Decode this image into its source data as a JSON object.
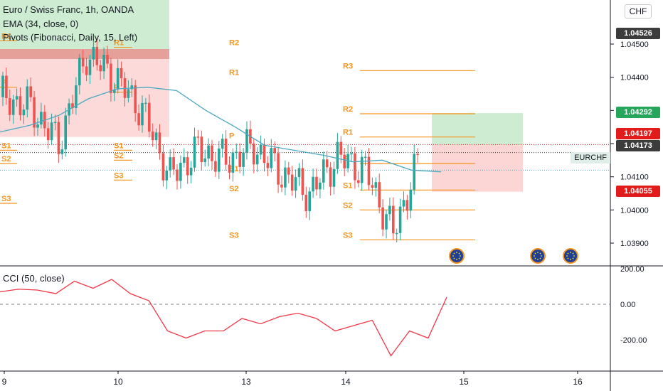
{
  "legend": {
    "title": "Euro / Swiss Franc, 1h, OANDA",
    "ema": "EMA (34, close, 0)",
    "pivots": "Pivots (Fibonacci, Daily, 15, Left)",
    "cci": "CCI (50, close)"
  },
  "currency_button": "CHF",
  "symbol_label": "EURCHF",
  "price_badges": [
    {
      "value": "1.04526",
      "color": "#3c3c3c",
      "text_color": "#ffffff"
    },
    {
      "value": "1.04292",
      "color": "#26a65b",
      "text_color": "#ffffff"
    },
    {
      "value": "1.04197",
      "color": "#e21b1b",
      "text_color": "#ffffff"
    },
    {
      "value": "1.04173",
      "color": "#3c3c3c",
      "text_color": "#ffffff"
    },
    {
      "value": "1.04055",
      "color": "#e21b1b",
      "text_color": "#ffffff"
    }
  ],
  "colors": {
    "up": "#26a69a",
    "down": "#ef5350",
    "pivot": "#f7931a",
    "ema": "#4aa8c0",
    "cci": "#f23645",
    "profit_zone": "#b9e4bf",
    "loss_zone": "#fbcaca"
  },
  "chart_data": [
    {
      "type": "line",
      "title": "Euro / Swiss Franc, 1h, OANDA",
      "x_tick_labels": [
        "9",
        "10",
        "13",
        "14",
        "15",
        "16"
      ],
      "y_tick_labels": [
        "1.04500",
        "1.04400",
        "1.04300",
        "1.04200",
        "1.04100",
        "1.04000",
        "1.03900"
      ],
      "ylim": [
        1.0385,
        1.0462
      ],
      "grid": false,
      "series": [
        {
          "name": "EMA (34, close, 0)",
          "values": [
            1.04235,
            1.04255,
            1.04285,
            1.04335,
            1.04365,
            1.0437,
            1.0436,
            1.043,
            1.0425,
            1.04195,
            1.0418,
            1.04165,
            1.04145,
            1.0415,
            1.0412,
            1.04115
          ]
        },
        {
          "name": "EURCHF (approx. close)",
          "values": [
            1.0434,
            1.0431,
            1.042,
            1.0447,
            1.044,
            1.043,
            1.041,
            1.0418,
            1.0415,
            1.0419,
            1.0411,
            1.0405,
            1.0416,
            1.0412,
            1.0393,
            1.0417
          ]
        }
      ],
      "pivot_levels": [
        {
          "day": "9",
          "R1": 1.0451,
          "P": 1.0437,
          "S1": 1.0418,
          "S2": 1.0414,
          "S3": 1.0402
        },
        {
          "day": "10",
          "R2": 1.0464,
          "R1": 1.0449,
          "P": 1.04355,
          "S1": 1.0418,
          "S2": 1.0415,
          "S3": 1.0409
        },
        {
          "day": "13",
          "R2": 1.0449,
          "R1": 1.044,
          "P": 1.0421,
          "S1": 1.0411,
          "S2": 1.0405,
          "S3": 1.0391
        },
        {
          "day": "14",
          "R3": 1.0442,
          "R2": 1.0429,
          "R1": 1.0422,
          "P": 1.0414,
          "S1": 1.0406,
          "S2": 1.04,
          "S3": 1.0391
        }
      ],
      "position": {
        "target": 1.04292,
        "entry": 1.04197,
        "stop": 1.04055
      }
    },
    {
      "type": "line",
      "title": "CCI (50, close)",
      "y_tick_labels": [
        "200.00",
        "0.00",
        "-200.00"
      ],
      "ylim": [
        -300,
        230
      ],
      "series": [
        {
          "name": "CCI (50, close)",
          "values": [
            70,
            85,
            80,
            60,
            130,
            90,
            140,
            60,
            20,
            -150,
            -190,
            -150,
            -150,
            -80,
            -110,
            -70,
            -50,
            -80,
            -150,
            -120,
            -90,
            -290,
            -150,
            -190,
            40
          ]
        }
      ]
    }
  ]
}
